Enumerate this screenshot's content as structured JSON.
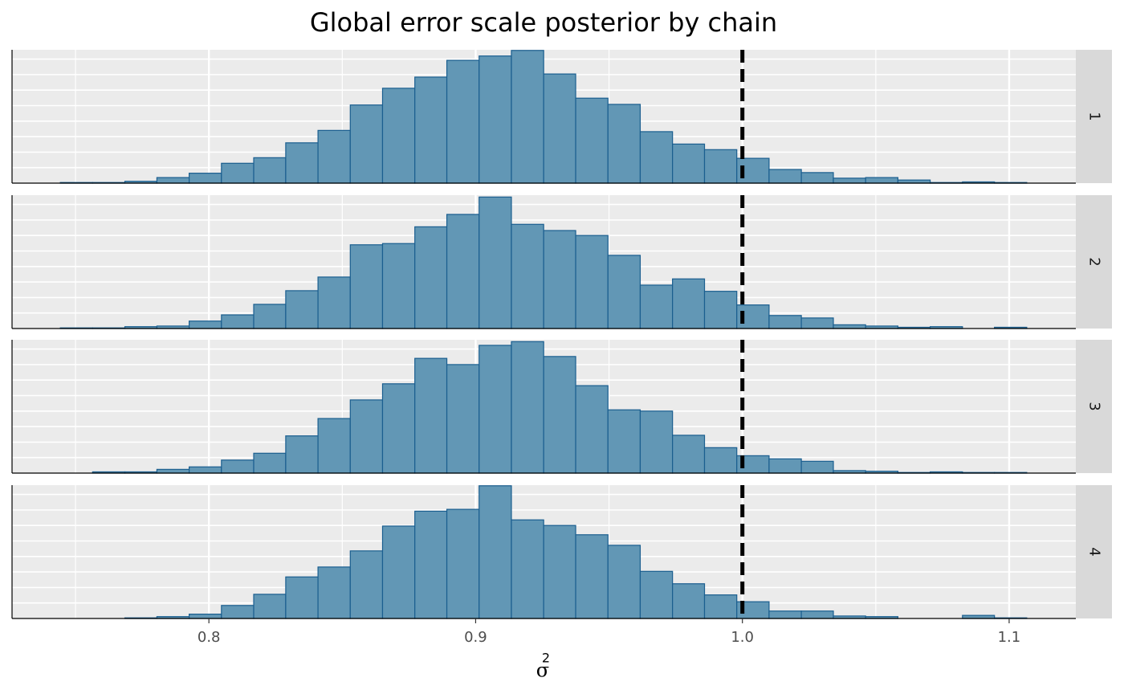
{
  "chart_data": {
    "type": "histogram",
    "title": "Global error scale posterior by chain",
    "x_label": {
      "base": "σ",
      "sup": "2"
    },
    "bins": [
      0.7443,
      0.7564,
      0.7685,
      0.7805,
      0.7926,
      0.8047,
      0.8168,
      0.8288,
      0.8409,
      0.853,
      0.8651,
      0.8772,
      0.8892,
      0.9013,
      0.9134,
      0.9255,
      0.9375,
      0.9496,
      0.9617,
      0.9738,
      0.9858,
      0.9979,
      1.01,
      1.0221,
      1.0341,
      1.0462,
      1.0583,
      1.0704,
      1.0825,
      1.0945,
      1.1066
    ],
    "panels": [
      {
        "label": "1",
        "values": [
          1,
          1,
          3,
          9,
          16,
          32,
          41,
          65,
          85,
          126,
          153,
          171,
          198,
          205,
          214,
          176,
          137,
          127,
          83,
          63,
          54,
          40,
          22,
          17,
          8,
          9,
          5,
          1,
          2,
          1
        ]
      },
      {
        "label": "2",
        "values": [
          1,
          1,
          3,
          4,
          12,
          22,
          39,
          61,
          83,
          135,
          137,
          164,
          184,
          212,
          168,
          158,
          150,
          118,
          70,
          80,
          60,
          38,
          21,
          17,
          6,
          4,
          2,
          3,
          0,
          2
        ]
      },
      {
        "label": "3",
        "values": [
          0,
          2,
          2,
          6,
          10,
          21,
          32,
          60,
          88,
          118,
          144,
          185,
          175,
          206,
          212,
          188,
          141,
          102,
          100,
          61,
          41,
          28,
          23,
          19,
          4,
          3,
          1,
          2,
          1,
          1
        ]
      },
      {
        "label": "4",
        "values": [
          0,
          0,
          1,
          3,
          7,
          21,
          39,
          67,
          83,
          109,
          149,
          173,
          176,
          214,
          159,
          150,
          135,
          118,
          76,
          56,
          38,
          27,
          12,
          12,
          4,
          3,
          0,
          0,
          5,
          1
        ]
      }
    ],
    "fill": "#6297b5",
    "edge_color": "#1a5e8f",
    "xlim": [
      0.7262,
      1.125
    ],
    "xticks": [
      0.8,
      0.9,
      {
        "value": 1,
        "label": "1.0"
      },
      1.1
    ],
    "xminor": [
      0.75,
      0.85,
      0.95,
      1.05
    ],
    "ylim": [
      0,
      215
    ],
    "yticks": [
      25,
      50,
      75,
      100,
      125,
      150,
      175,
      200
    ],
    "ytick_labels": false,
    "grid": true,
    "vline": {
      "value": 1,
      "color": "#000000",
      "dashed": true
    }
  }
}
